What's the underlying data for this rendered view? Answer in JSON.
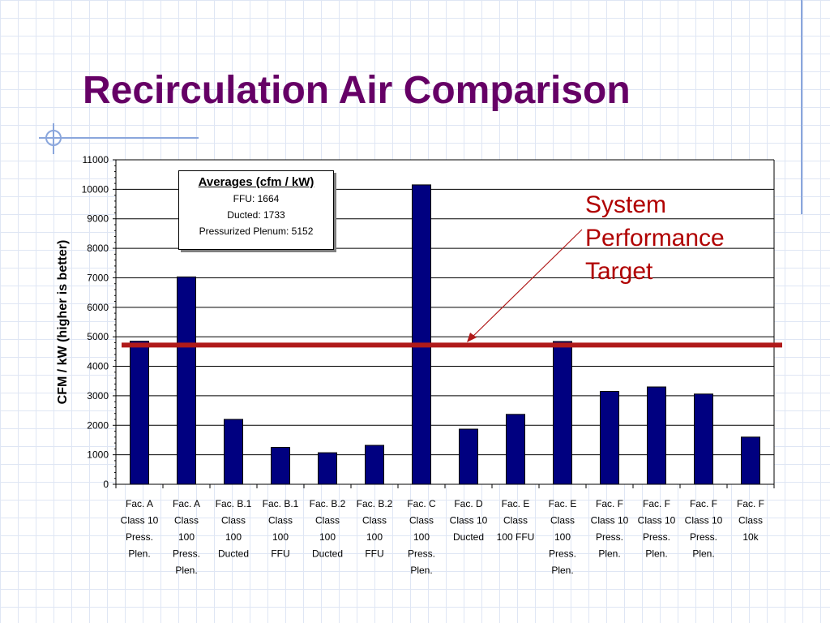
{
  "slide": {
    "title": "Recirculation Air Comparison",
    "annotation": [
      "System",
      "Performance",
      "Target"
    ]
  },
  "legend": {
    "heading": "Averages (cfm / kW)",
    "items": [
      "FFU: 1664",
      "Ducted: 1733",
      "Pressurized Plenum:  5152"
    ]
  },
  "colors": {
    "bar": "#000080",
    "target_line": "#b01a1a",
    "title": "#660066",
    "annotation": "#b00000"
  },
  "chart_data": {
    "type": "bar",
    "title": "",
    "xlabel": "",
    "ylabel": "CFM / kW (higher is better)",
    "ylim": [
      0,
      11000
    ],
    "yticks": [
      0,
      1000,
      2000,
      3000,
      4000,
      5000,
      6000,
      7000,
      8000,
      9000,
      10000,
      11000
    ],
    "grid": true,
    "legend_position": "top-left",
    "categories": [
      [
        "Fac. A",
        "Class 10",
        "Press.",
        "Plen."
      ],
      [
        "Fac. A",
        "Class",
        "100",
        "Press.",
        "Plen."
      ],
      [
        "Fac. B.1",
        "Class",
        "100",
        "Ducted"
      ],
      [
        "Fac. B.1",
        "Class",
        "100",
        "FFU"
      ],
      [
        "Fac. B.2",
        "Class",
        "100",
        "Ducted"
      ],
      [
        "Fac. B.2",
        "Class",
        "100",
        "FFU"
      ],
      [
        "Fac. C",
        "Class",
        "100",
        "Press.",
        "Plen."
      ],
      [
        "Fac. D",
        "Class 10",
        "Ducted"
      ],
      [
        "Fac. E",
        "Class",
        "100 FFU"
      ],
      [
        "Fac. E",
        "Class",
        "100",
        "Press.",
        "Plen."
      ],
      [
        "Fac. F",
        "Class 10",
        "Press.",
        "Plen."
      ],
      [
        "Fac. F",
        "Class 10",
        "Press.",
        "Plen."
      ],
      [
        "Fac. F",
        "Class 10",
        "Press.",
        "Plen."
      ],
      [
        "Fac. F",
        "Class",
        "10k"
      ]
    ],
    "values": [
      4850,
      7030,
      2200,
      1250,
      1070,
      1320,
      10150,
      1870,
      2370,
      4840,
      3150,
      3300,
      3060,
      1600
    ],
    "target_line_value": 4720
  }
}
